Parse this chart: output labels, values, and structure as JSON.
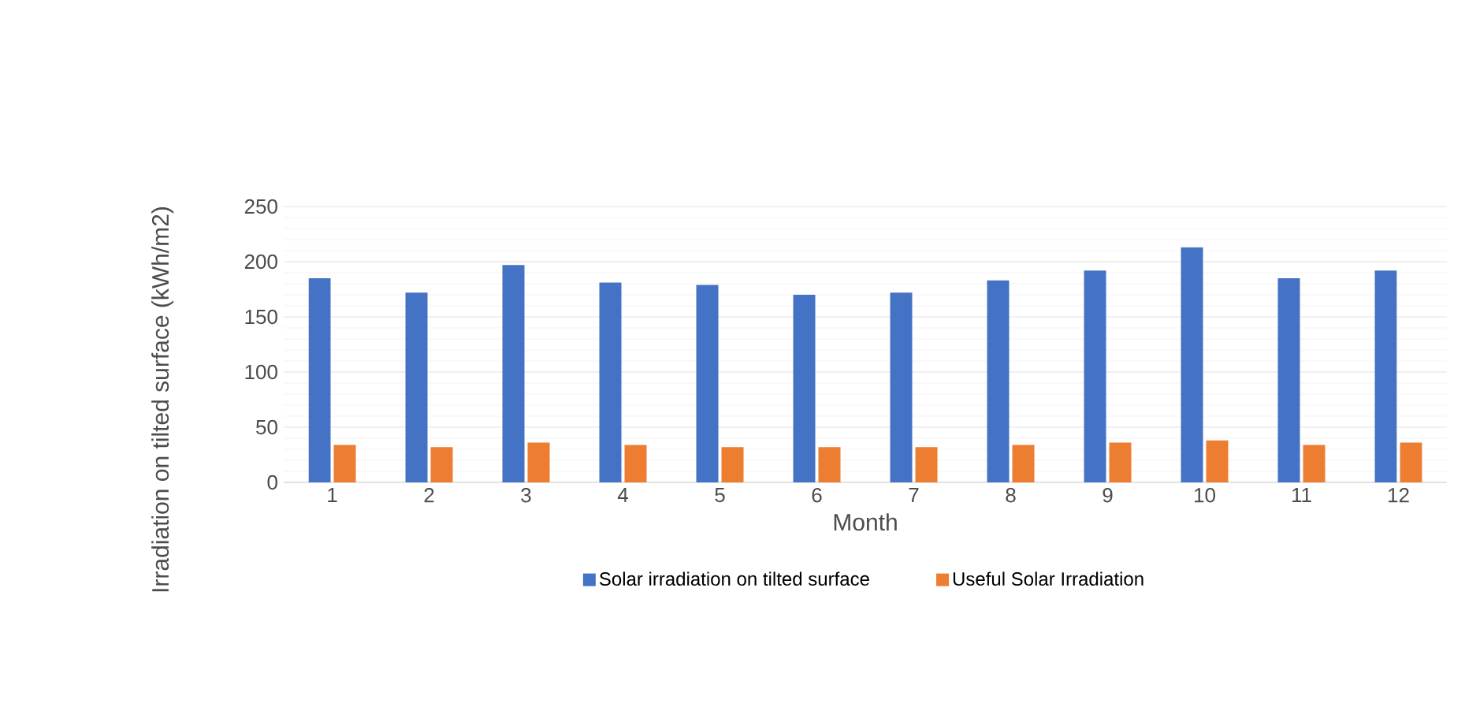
{
  "chart_data": {
    "type": "bar",
    "xlabel": "Month",
    "ylabel": "Irradiation on tilted surface (kWh/m2)",
    "categories": [
      "1",
      "2",
      "3",
      "4",
      "5",
      "6",
      "7",
      "8",
      "9",
      "10",
      "11",
      "12"
    ],
    "series": [
      {
        "name": "Solar irradiation on tilted surface",
        "color": "#4472c4",
        "values": [
          185,
          172,
          197,
          181,
          179,
          170,
          172,
          183,
          192,
          213,
          185,
          192
        ]
      },
      {
        "name": "Useful Solar Irradiation",
        "color": "#ed7d31",
        "values": [
          34,
          32,
          36,
          34,
          32,
          32,
          32,
          34,
          36,
          38,
          34,
          36
        ]
      }
    ],
    "ylim": [
      0,
      250
    ],
    "yticks": [
      0,
      50,
      100,
      150,
      200,
      250
    ],
    "grid": "y",
    "legend": "bottom"
  }
}
